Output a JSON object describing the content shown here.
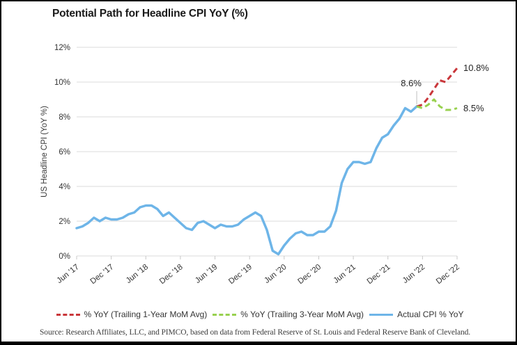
{
  "chart_data": {
    "type": "line",
    "title": "Potential Path for Headline CPI YoY (%)",
    "xlabel": "",
    "ylabel": "US Headline CPI (YoY %)",
    "ylim": [
      0,
      12
    ],
    "ytick_step": 2,
    "ytick_suffix": "%",
    "grid": "horizontal",
    "legend_position": "bottom",
    "months_total": 67,
    "x_tick_labels": [
      "Jun '17",
      "Dec '17",
      "Jun '18",
      "Dec '18",
      "Jun '19",
      "Dec '19",
      "Jun '20",
      "Dec '20",
      "Jun '21",
      "Dec '21",
      "Jun '22",
      "Dec '22"
    ],
    "series": [
      {
        "name": "Actual CPI % YoY",
        "color": "#6EB5E8",
        "style": "solid",
        "start_index": 0,
        "values": [
          1.6,
          1.7,
          1.9,
          2.2,
          2.0,
          2.2,
          2.1,
          2.1,
          2.2,
          2.4,
          2.5,
          2.8,
          2.9,
          2.9,
          2.7,
          2.3,
          2.5,
          2.2,
          1.9,
          1.6,
          1.5,
          1.9,
          2.0,
          1.8,
          1.6,
          1.8,
          1.7,
          1.7,
          1.8,
          2.1,
          2.3,
          2.5,
          2.3,
          1.5,
          0.3,
          0.1,
          0.6,
          1.0,
          1.3,
          1.4,
          1.2,
          1.2,
          1.4,
          1.4,
          1.7,
          2.6,
          4.2,
          5.0,
          5.4,
          5.4,
          5.3,
          5.4,
          6.2,
          6.8,
          7.0,
          7.5,
          7.9,
          8.5,
          8.3,
          8.6
        ]
      },
      {
        "name": "% YoY (Trailing 1-Year MoM Avg)",
        "color": "#C9363A",
        "style": "dashed",
        "start_index": 59,
        "values": [
          8.6,
          8.7,
          9.1,
          9.6,
          10.1,
          10.0,
          10.4,
          10.8
        ]
      },
      {
        "name": "% YoY (Trailing 3-Year MoM Avg)",
        "color": "#98D14F",
        "style": "dashed",
        "start_index": 59,
        "values": [
          8.6,
          8.5,
          8.7,
          9.0,
          8.6,
          8.4,
          8.4,
          8.5
        ]
      }
    ],
    "annotations": {
      "actual_end": "8.6%",
      "red_end": "10.8%",
      "green_end": "8.5%"
    }
  },
  "legend": {
    "items": [
      {
        "label": "% YoY (Trailing 1-Year MoM Avg)",
        "color": "#C9363A",
        "style": "dashed"
      },
      {
        "label": "% YoY (Trailing 3-Year MoM Avg)",
        "color": "#98D14F",
        "style": "dashed"
      },
      {
        "label": "Actual CPI % YoY",
        "color": "#6EB5E8",
        "style": "solid"
      }
    ]
  },
  "source": {
    "text": "Source: Research Affiliates, LLC, and PIMCO, based on data from Federal Reserve of St. Louis and Federal Reserve Bank of Cleveland."
  },
  "colors": {
    "gridline": "#DBDBDB",
    "tick": "#C8C8C8",
    "axis_text": "#333333",
    "callout_line": "#BFBFBF"
  }
}
